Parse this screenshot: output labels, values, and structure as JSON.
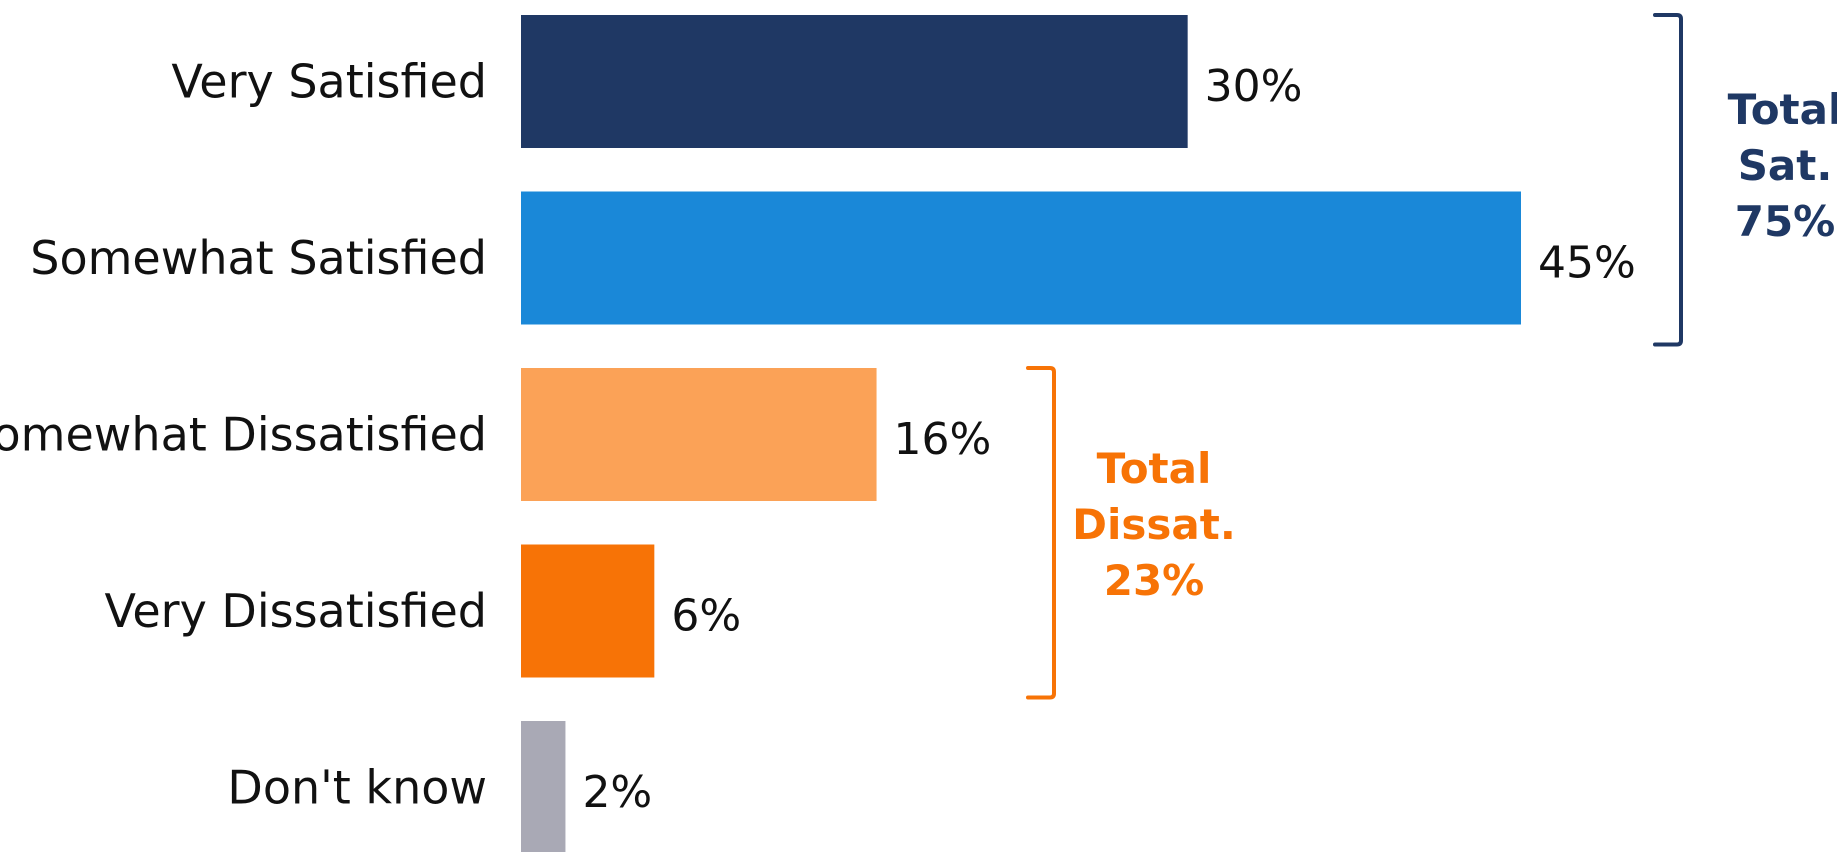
{
  "chart_data": {
    "type": "bar",
    "orientation": "horizontal",
    "categories": [
      "Very Satisfied",
      "Somewhat Satisfied",
      "Somewhat Dissatisfied",
      "Very Dissatisfied",
      "Don't know"
    ],
    "values": [
      30,
      45,
      16,
      6,
      2
    ],
    "value_labels": [
      "30%",
      "45%",
      "16%",
      "6%",
      "2%"
    ],
    "bar_colors": [
      "#1f3864",
      "#1a88d8",
      "#fba257",
      "#f77306",
      "#a9a9b5"
    ],
    "title": "",
    "xlabel": "",
    "ylabel": "",
    "xlim": [
      0,
      45
    ],
    "grid": false,
    "legend": "none",
    "groups": [
      {
        "lines": [
          "Total",
          "Sat.",
          "75%"
        ],
        "value": 75,
        "categories": [
          "Very Satisfied",
          "Somewhat Satisfied"
        ],
        "color": "#1f3864"
      },
      {
        "lines": [
          "Total",
          "Dissat.",
          "23%"
        ],
        "value": 23,
        "categories": [
          "Somewhat Dissatisfied",
          "Very Dissatisfied"
        ],
        "color": "#f77306"
      }
    ]
  }
}
